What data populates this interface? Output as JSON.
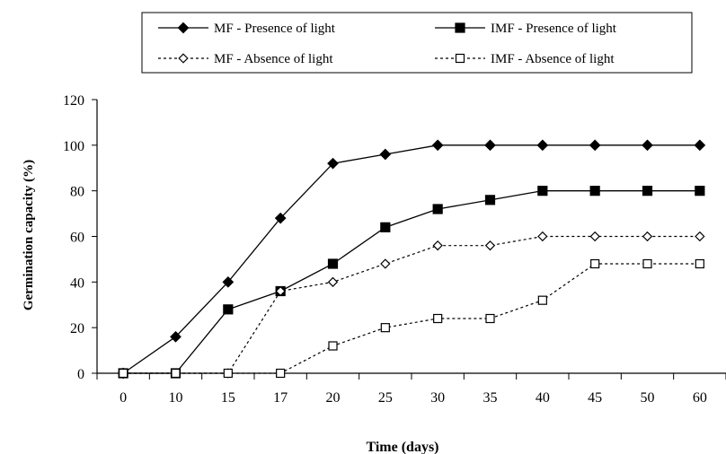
{
  "chart_data": {
    "type": "line",
    "xlabel": "Time (days)",
    "ylabel": "Germination capacity (%)",
    "categories": [
      "0",
      "10",
      "15",
      "17",
      "20",
      "25",
      "30",
      "35",
      "40",
      "45",
      "50",
      "60"
    ],
    "ylim": [
      0,
      120
    ],
    "yticks": [
      0,
      20,
      40,
      60,
      80,
      100,
      120
    ],
    "grid": false,
    "legend_position": "top",
    "series": [
      {
        "name": "MF - Presence of light",
        "marker": "diamond-filled",
        "line": "solid",
        "color": "#000000",
        "values": [
          0,
          16,
          40,
          68,
          92,
          96,
          100,
          100,
          100,
          100,
          100,
          100
        ]
      },
      {
        "name": "IMF - Presence of light",
        "marker": "square-filled",
        "line": "solid",
        "color": "#000000",
        "values": [
          0,
          0,
          28,
          36,
          48,
          64,
          72,
          76,
          80,
          80,
          80,
          80
        ]
      },
      {
        "name": "MF - Absence of light",
        "marker": "diamond-open",
        "line": "dotted",
        "color": "#000000",
        "values": [
          0,
          0,
          0,
          36,
          40,
          48,
          56,
          56,
          60,
          60,
          60,
          60
        ]
      },
      {
        "name": "IMF - Absence of light",
        "marker": "square-open",
        "line": "dotted",
        "color": "#000000",
        "values": [
          0,
          0,
          0,
          0,
          12,
          20,
          24,
          24,
          32,
          48,
          48,
          48
        ]
      }
    ]
  }
}
